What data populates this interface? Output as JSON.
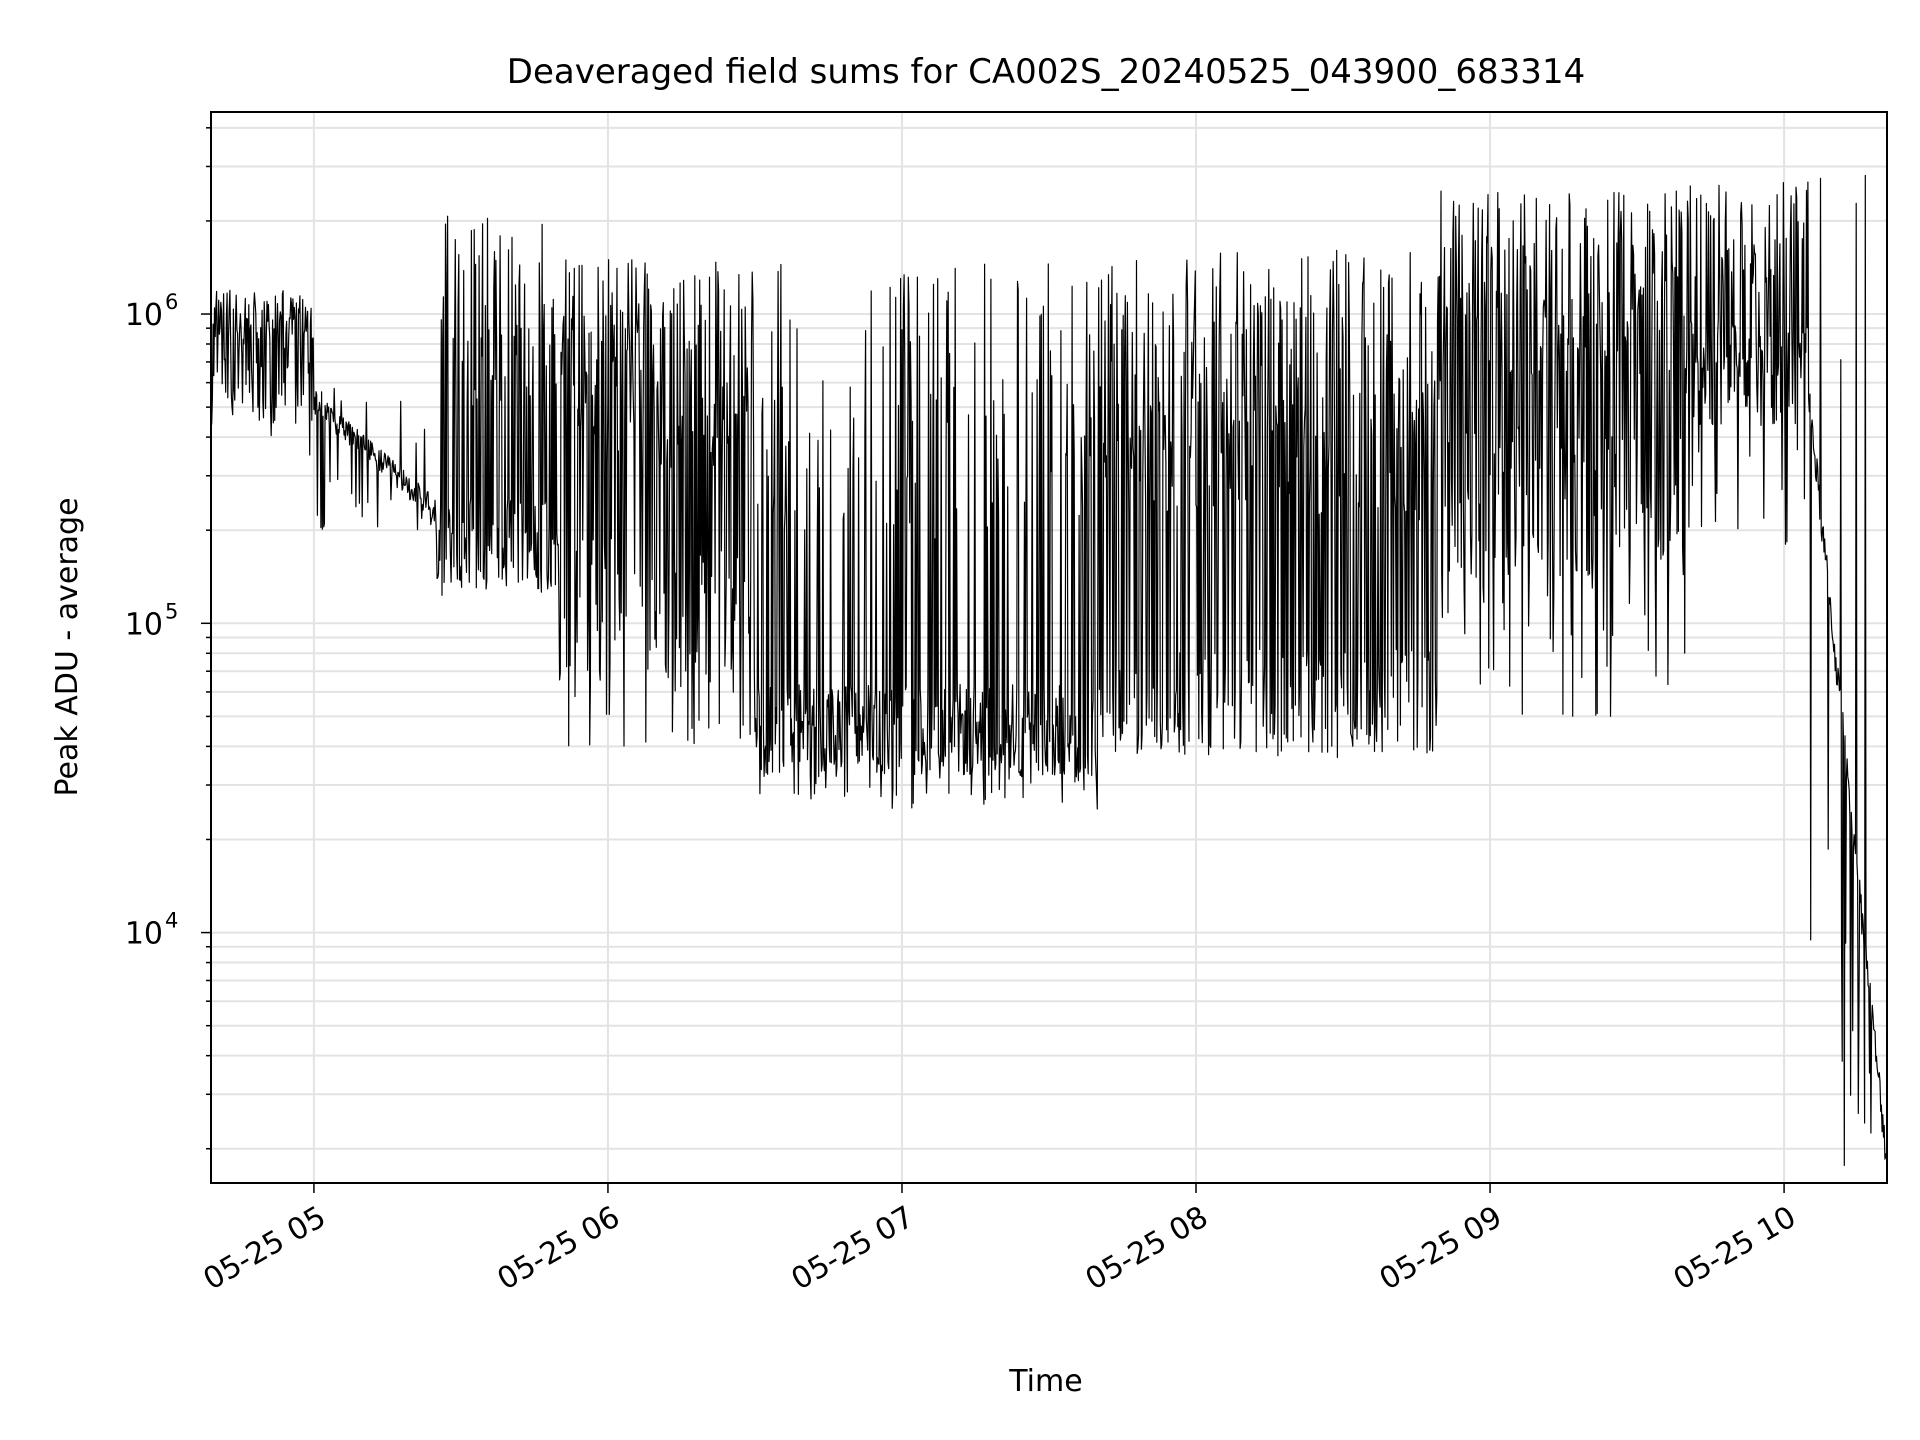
{
  "chart_data": {
    "type": "line",
    "title": "Deaveraged field sums for CA002S_20240525_043900_683314",
    "xlabel": "Time",
    "ylabel": "Peak ADU - average",
    "xscale": "time",
    "yscale": "log",
    "xlim": [
      "2024-05-25T04:39:00",
      "2024-05-25T10:21:00"
    ],
    "ylim": [
      1550,
      4500000
    ],
    "grid": true,
    "legend": "none",
    "line_color": "#000000",
    "x_ticks": [
      {
        "t": "2024-05-25T05:00:00",
        "label": "05-25 05"
      },
      {
        "t": "2024-05-25T06:00:00",
        "label": "05-25 06"
      },
      {
        "t": "2024-05-25T07:00:00",
        "label": "05-25 07"
      },
      {
        "t": "2024-05-25T08:00:00",
        "label": "05-25 08"
      },
      {
        "t": "2024-05-25T09:00:00",
        "label": "05-25 09"
      },
      {
        "t": "2024-05-25T10:00:00",
        "label": "05-25 10"
      }
    ],
    "y_ticks": [
      {
        "value": 10000,
        "base": "10",
        "exp": "4"
      },
      {
        "value": 100000,
        "base": "10",
        "exp": "5"
      },
      {
        "value": 1000000,
        "base": "10",
        "exp": "6"
      }
    ],
    "segments": [
      {
        "start": "2024-05-25T04:39:00",
        "end": "2024-05-25T05:00:00",
        "base": 650000,
        "spike_max": 1200000,
        "dip_min": 350000,
        "spike_prob": 0.5,
        "noise": 0.35
      },
      {
        "start": "2024-05-25T05:00:00",
        "end": "2024-05-25T05:25:00",
        "base_start": 520000,
        "base_end": 230000,
        "spike_max": 600000,
        "dip_min": 190000,
        "spike_prob": 0.05,
        "noise": 0.08
      },
      {
        "start": "2024-05-25T05:25:00",
        "end": "2024-05-25T05:50:00",
        "base": 180000,
        "spike_max": 2100000,
        "dip_min": 120000,
        "spike_prob": 0.35,
        "noise": 0.3
      },
      {
        "start": "2024-05-25T05:50:00",
        "end": "2024-05-25T06:30:00",
        "base": 110000,
        "spike_max": 1500000,
        "dip_min": 40000,
        "spike_prob": 0.6,
        "noise": 0.5
      },
      {
        "start": "2024-05-25T06:30:00",
        "end": "2024-05-25T07:40:00",
        "base": 45000,
        "spike_max": 1500000,
        "dip_min": 25000,
        "spike_prob": 0.25,
        "noise": 0.3
      },
      {
        "start": "2024-05-25T07:40:00",
        "end": "2024-05-25T08:50:00",
        "base": 55000,
        "spike_max": 1650000,
        "dip_min": 38000,
        "spike_prob": 0.6,
        "noise": 0.35
      },
      {
        "start": "2024-05-25T08:50:00",
        "end": "2024-05-25T09:40:00",
        "base": 250000,
        "spike_max": 2500000,
        "dip_min": 50000,
        "spike_prob": 0.55,
        "noise": 0.5
      },
      {
        "start": "2024-05-25T09:40:00",
        "end": "2024-05-25T10:05:00",
        "base": 650000,
        "spike_max": 2700000,
        "dip_min": 180000,
        "spike_prob": 0.3,
        "noise": 0.35
      },
      {
        "start": "2024-05-25T10:05:00",
        "end": "2024-05-25T10:21:00",
        "base_start": 550000,
        "base_end": 1800,
        "spike_max": 3200000,
        "dip_min": 1700,
        "spike_prob": 0.02,
        "noise": 0.12
      }
    ]
  }
}
